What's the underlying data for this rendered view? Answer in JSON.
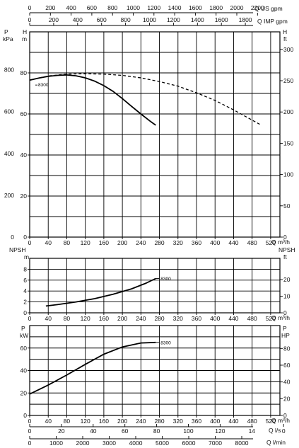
{
  "chart_data": {
    "type": "line",
    "top_scales": [
      {
        "unit": "Q US gpm",
        "ticks": [
          "0",
          "200",
          "400",
          "600",
          "800",
          "1000",
          "1200",
          "1400",
          "1600",
          "1800",
          "2000",
          "2200"
        ]
      },
      {
        "unit": "Q IMP gpm",
        "ticks": [
          "0",
          "200",
          "400",
          "600",
          "800",
          "1000",
          "1200",
          "1400",
          "1600",
          "1800"
        ]
      }
    ],
    "bottom_scales": [
      {
        "unit": "Q l/s",
        "ticks": [
          "0",
          "20",
          "40",
          "60",
          "80",
          "100",
          "120",
          "14",
          "0"
        ]
      },
      {
        "unit": "Q l/min",
        "ticks": [
          "0",
          "1000",
          "2000",
          "3000",
          "4000",
          "5000",
          "6000",
          "7000",
          "8000"
        ]
      }
    ],
    "panels": [
      {
        "id": "head",
        "left_axis": {
          "label": "P",
          "unit": "kPa",
          "ticks": [
            "0",
            "200",
            "400",
            "600",
            "800"
          ]
        },
        "left_axis2": {
          "label": "H",
          "unit": "m",
          "ticks": [
            "0",
            "20",
            "40",
            "60",
            "80"
          ]
        },
        "right_axis": {
          "label": "H",
          "unit": "ft",
          "ticks": [
            "0",
            "50",
            "100",
            "150",
            "200",
            "250",
            "300"
          ]
        },
        "x_unit": "Q m³/h",
        "x_ticks": [
          "0",
          "40",
          "80",
          "120",
          "160",
          "200",
          "240",
          "280",
          "320",
          "360",
          "400",
          "440",
          "480",
          "520"
        ],
        "ylim_m": [
          0,
          100
        ],
        "xlim": [
          0,
          540
        ],
        "series": [
          {
            "name": "8300",
            "style": "solid",
            "x": [
              0,
              20,
              40,
              60,
              80,
              100,
              120,
              140,
              160,
              180,
              200,
              220,
              240,
              260,
              272
            ],
            "y": [
              76.5,
              77.5,
              78.3,
              78.8,
              79.0,
              78.6,
              77.6,
              76.0,
              73.8,
              71.0,
              67.5,
              63.7,
              60.0,
              56.5,
              54.5
            ]
          },
          {
            "name": "",
            "style": "dashed",
            "x": [
              0,
              40,
              80,
              120,
              160,
              200,
              240,
              280,
              320,
              360,
              400,
              440,
              480,
              500
            ],
            "y": [
              76.5,
              78.5,
              79.4,
              79.6,
              79.4,
              78.8,
              77.6,
              75.8,
              73.5,
              70.3,
              66.6,
              62.0,
              57.0,
              54.5
            ]
          }
        ]
      },
      {
        "id": "npsh",
        "left_axis": {
          "label": "NPSH",
          "unit": "m",
          "ticks": [
            "0",
            "2",
            "4",
            "6",
            "8"
          ]
        },
        "right_axis": {
          "label": "NPSH",
          "unit": "ft",
          "ticks": [
            "0",
            "10",
            "20"
          ]
        },
        "x_unit": "Q m³/h",
        "x_ticks": [
          "0",
          "40",
          "80",
          "120",
          "160",
          "200",
          "240",
          "280",
          "320",
          "360",
          "400",
          "440",
          "480",
          "520"
        ],
        "ylim_m": [
          0,
          10
        ],
        "xlim": [
          0,
          540
        ],
        "series": [
          {
            "name": "8300",
            "style": "solid",
            "x": [
              35,
              60,
              100,
              140,
              180,
              220,
              250,
              272
            ],
            "y": [
              1.25,
              1.5,
              2.0,
              2.6,
              3.4,
              4.4,
              5.4,
              6.3
            ]
          }
        ]
      },
      {
        "id": "power",
        "left_axis": {
          "label": "P",
          "unit": "kW",
          "ticks": [
            "0",
            "20",
            "40",
            "60"
          ]
        },
        "right_axis": {
          "label": "P",
          "unit": "HP",
          "ticks": [
            "0",
            "20",
            "40",
            "60",
            "80"
          ]
        },
        "x_unit": "Q m³/h",
        "x_ticks": [
          "0",
          "40",
          "80",
          "120",
          "160",
          "200",
          "240",
          "280",
          "320",
          "360",
          "400",
          "440",
          "480",
          "520"
        ],
        "ylim_kw": [
          0,
          80
        ],
        "xlim": [
          0,
          540
        ],
        "series": [
          {
            "name": "8300",
            "style": "solid",
            "x": [
              0,
              40,
              80,
              120,
              160,
              200,
              240,
              272
            ],
            "y": [
              19,
              27,
              36,
              45.5,
              54.5,
              61,
              64.5,
              65
            ]
          }
        ]
      }
    ],
    "grid": true
  }
}
